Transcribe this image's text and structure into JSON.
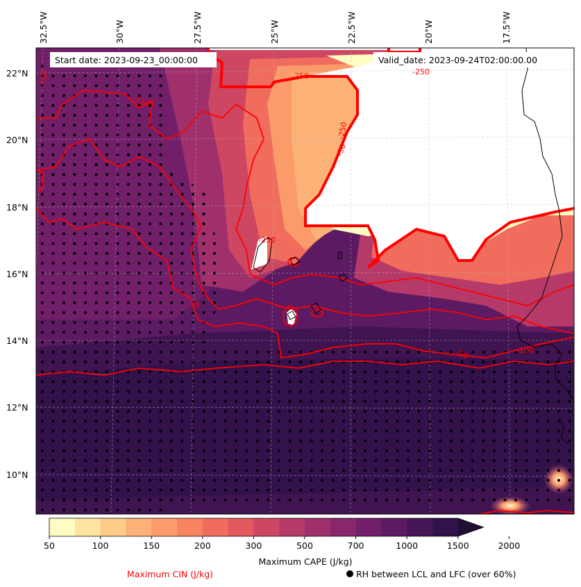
{
  "map": {
    "start_date_label": "Start date: 2023-09-23_00:00:00",
    "valid_date_label": "Valid_date: 2023-09-24T02:00:00.00",
    "lon_labels": [
      "32.5°W",
      "30°W",
      "27.5°W",
      "25°W",
      "22.5°W",
      "20°W",
      "17.5°W"
    ],
    "lat_labels": [
      "22°N",
      "20°N",
      "18°N",
      "16°N",
      "14°N",
      "12°N",
      "10°N"
    ],
    "cin_contour_labels": [
      "-250",
      "-250",
      "-250",
      "-250",
      "-50",
      "-50",
      "-100",
      "-150",
      "-100",
      "-50"
    ],
    "stipple_meaning": "RH between LCL and LFC (over 60%)"
  },
  "colorbar": {
    "ticks": [
      "50",
      "100",
      "150",
      "200",
      "300",
      "500",
      "700",
      "1000",
      "1500",
      "2000"
    ],
    "label": "Maximum CAPE (J/kg)",
    "colors": [
      "#fdfdc3",
      "#fde4a0",
      "#fdcb88",
      "#fcb277",
      "#fb9b69",
      "#f8835f",
      "#f06c5d",
      "#e1585f",
      "#cd4763",
      "#b63a69",
      "#9f306c",
      "#88276d",
      "#721f6a",
      "#5c1a62",
      "#471656",
      "#31124a",
      "#1f0f35"
    ]
  },
  "legend": {
    "cin_label": "Maximum CIN (J/kg)",
    "rh_label": "RH between LCL and LFC (over 60%)",
    "cin_color": "#ff0000"
  }
}
